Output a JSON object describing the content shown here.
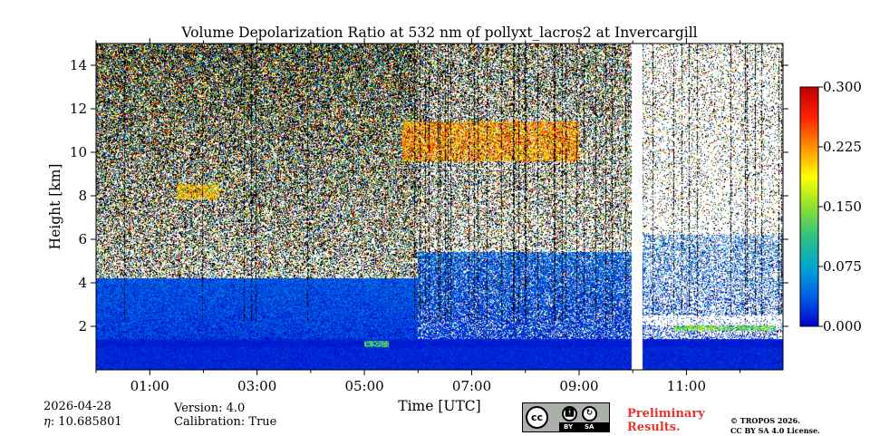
{
  "chart_data": {
    "type": "heatmap",
    "title": "Volume Depolarization Ratio at 532 nm of pollyxt_lacros2 at Invercargill",
    "xlabel": "Time [UTC]",
    "ylabel": "Height [km]",
    "x_range_hours": [
      0.0,
      12.8
    ],
    "x_ticks": [
      {
        "value": 1,
        "label": "01:00"
      },
      {
        "value": 3,
        "label": "03:00"
      },
      {
        "value": 5,
        "label": "05:00"
      },
      {
        "value": 7,
        "label": "07:00"
      },
      {
        "value": 9,
        "label": "09:00"
      },
      {
        "value": 11,
        "label": "11:00"
      }
    ],
    "x_minor_ticks": [
      0,
      2,
      4,
      6,
      8,
      10,
      12
    ],
    "ylim": [
      0,
      15
    ],
    "y_ticks": [
      {
        "value": 2,
        "label": "2"
      },
      {
        "value": 4,
        "label": "4"
      },
      {
        "value": 6,
        "label": "6"
      },
      {
        "value": 8,
        "label": "8"
      },
      {
        "value": 10,
        "label": "10"
      },
      {
        "value": 12,
        "label": "12"
      },
      {
        "value": 14,
        "label": "14"
      }
    ],
    "data_gap_hours": [
      9.98,
      10.18
    ],
    "colorbar": {
      "range": [
        0.0,
        0.3
      ],
      "ticks": [
        {
          "value": 0.0,
          "label": "0.000"
        },
        {
          "value": 0.075,
          "label": "0.075"
        },
        {
          "value": 0.15,
          "label": "0.150"
        },
        {
          "value": 0.225,
          "label": "0.225"
        },
        {
          "value": 0.3,
          "label": "0.300"
        }
      ],
      "colormap_stops": [
        "#0000c8",
        "#0060e8",
        "#00a8d0",
        "#30c080",
        "#90e030",
        "#ffff00",
        "#ff9000",
        "#ff2000",
        "#c00000"
      ]
    },
    "features": [
      {
        "name": "boundary layer",
        "time_start": 0.0,
        "time_end": 12.8,
        "height_km": 1.2,
        "depol": 0.01
      },
      {
        "name": "low cloud",
        "time_start": 5.0,
        "time_end": 5.45,
        "height_km": 1.2,
        "depol": 0.12
      },
      {
        "name": "low cloud",
        "time_start": 10.75,
        "time_end": 12.65,
        "height_km": 1.95,
        "depol": 0.14
      },
      {
        "name": "cirrus",
        "time_start": 5.7,
        "time_end": 9.0,
        "height_km": 10.5,
        "depol": 0.22
      },
      {
        "name": "aerosol layer",
        "time_start": 1.5,
        "time_end": 2.3,
        "height_km": 8.2,
        "depol": 0.2
      }
    ]
  },
  "footer": {
    "date": "2026-04-28",
    "eta": ": 10.685801",
    "eta_symbol": "η",
    "version": "Version: 4.0",
    "calibration": "Calibration: True",
    "preliminary_line1": "Preliminary",
    "preliminary_line2": "Results.",
    "copyright_line1": "© TROPOS 2026.",
    "copyright_line2": "CC BY SA 4.0 License."
  },
  "license_badge": {
    "cc": "cc",
    "by": "BY",
    "sa": "SA",
    "by_icon": "person-icon",
    "sa_icon": "share-alike-icon"
  }
}
